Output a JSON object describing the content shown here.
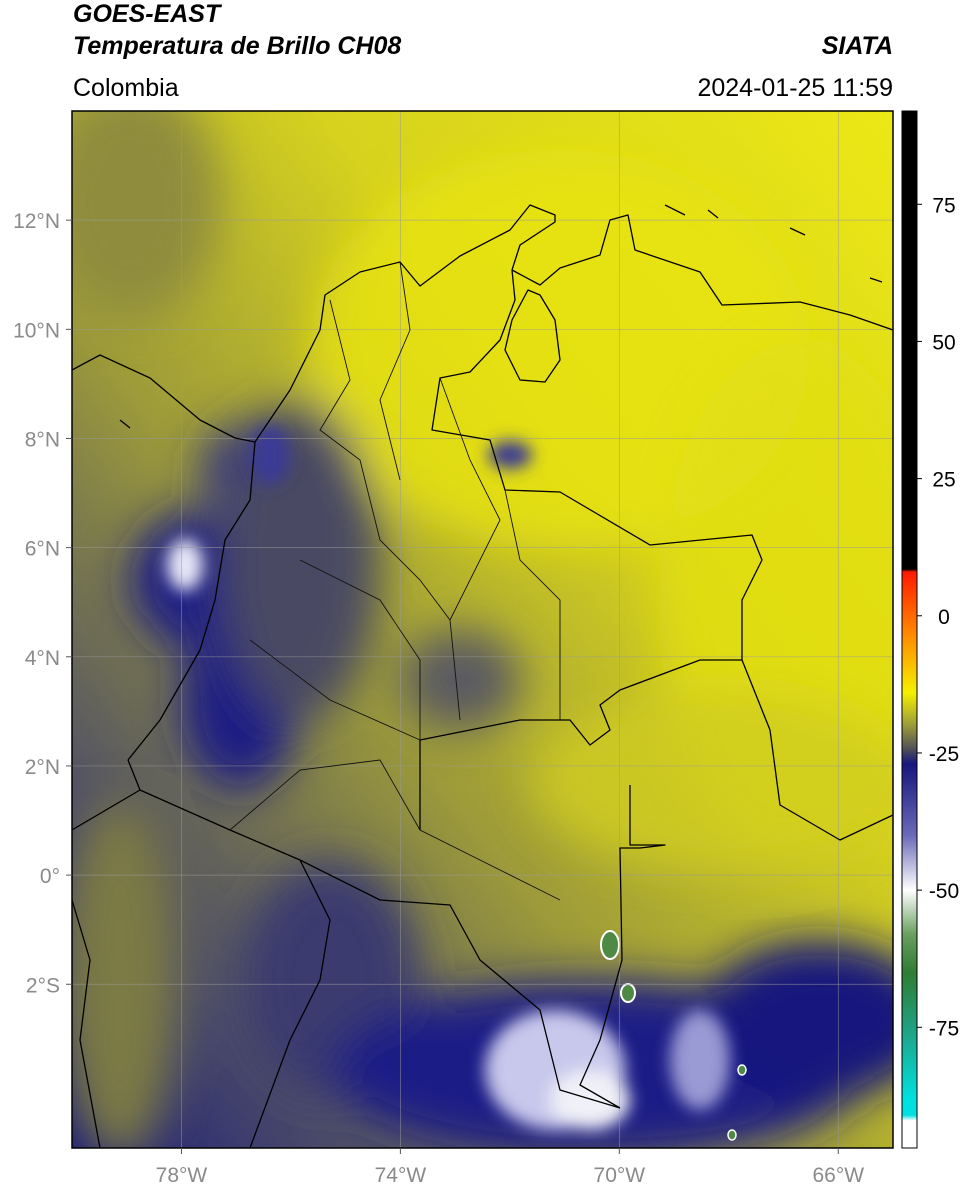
{
  "header": {
    "title": "GOES-EAST",
    "subtitle": "Temperatura de Brillo CH08",
    "source": "SIATA",
    "region": "Colombia",
    "datetime": "2024-01-25 11:59"
  },
  "map": {
    "type": "map",
    "xlim": [
      -80,
      -65
    ],
    "ylim": [
      -5,
      14
    ],
    "xticks": [
      {
        "value": -78,
        "label": "78°W"
      },
      {
        "value": -74,
        "label": "74°W"
      },
      {
        "value": -70,
        "label": "70°W"
      },
      {
        "value": -66,
        "label": "66°W"
      }
    ],
    "yticks": [
      {
        "value": 12,
        "label": "12°N"
      },
      {
        "value": 10,
        "label": "10°N"
      },
      {
        "value": 8,
        "label": "8°N"
      },
      {
        "value": 6,
        "label": "6°N"
      },
      {
        "value": 4,
        "label": "4°N"
      },
      {
        "value": 2,
        "label": "2°N"
      },
      {
        "value": 0,
        "label": "0°"
      },
      {
        "value": -2,
        "label": "2°S"
      }
    ],
    "grid": true
  },
  "colorbar": {
    "lim": [
      -97,
      92
    ],
    "ticks": [
      75,
      50,
      25,
      0,
      -25,
      -50,
      -75
    ],
    "stops": [
      {
        "value": 92,
        "color": "#000000"
      },
      {
        "value": 8.5,
        "color": "#000000"
      },
      {
        "value": 8,
        "color": "#ff1a00"
      },
      {
        "value": -5,
        "color": "#ff9900"
      },
      {
        "value": -14,
        "color": "#f5f000"
      },
      {
        "value": -20,
        "color": "#9a9a3a"
      },
      {
        "value": -24,
        "color": "#555555"
      },
      {
        "value": -27,
        "color": "#16167e"
      },
      {
        "value": -40,
        "color": "#6a6ab8"
      },
      {
        "value": -50,
        "color": "#ffffff"
      },
      {
        "value": -58,
        "color": "#6aa060"
      },
      {
        "value": -65,
        "color": "#2e7d32"
      },
      {
        "value": -75,
        "color": "#20a080"
      },
      {
        "value": -88,
        "color": "#00e0e0"
      },
      {
        "value": -91,
        "color": "#00e0e0"
      },
      {
        "value": -92,
        "color": "#ffffff"
      },
      {
        "value": -97,
        "color": "#ffffff"
      }
    ]
  }
}
